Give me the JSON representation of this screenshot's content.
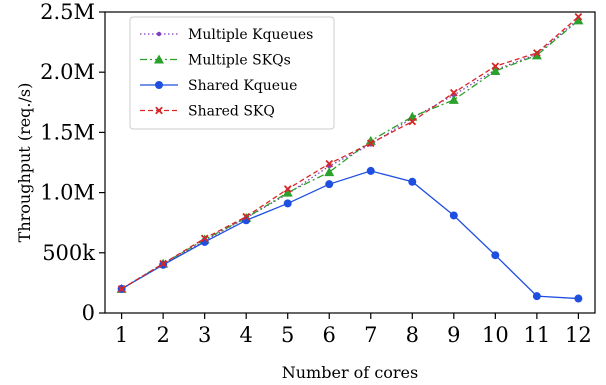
{
  "chart_data": {
    "type": "line",
    "title": "",
    "xlabel": "Number of cores",
    "ylabel": "Throughput (req./s)",
    "x": [
      1,
      2,
      3,
      4,
      5,
      6,
      7,
      8,
      9,
      10,
      11,
      12
    ],
    "x_tick_labels": [
      "1",
      "2",
      "3",
      "4",
      "5",
      "6",
      "7",
      "8",
      "9",
      "10",
      "11",
      "12"
    ],
    "xlim": [
      0.6,
      12.4
    ],
    "ylim": [
      0,
      2500000
    ],
    "y_ticks": [
      0,
      500000,
      1000000,
      1500000,
      2000000,
      2500000
    ],
    "y_tick_labels": [
      "0",
      "500k",
      "1.0M",
      "1.5M",
      "2.0M",
      "2.5M"
    ],
    "grid": false,
    "legend_position": "upper-left",
    "series": [
      {
        "name": "Multiple Kqueues",
        "color": "#7f3fbf",
        "line_style": "dotted",
        "marker": "dot",
        "values": [
          200000,
          410000,
          600000,
          790000,
          990000,
          1220000,
          1400000,
          1620000,
          1810000,
          2020000,
          2150000,
          2440000
        ]
      },
      {
        "name": "Multiple SKQs",
        "color": "#2ca02c",
        "line_style": "dash-dot",
        "marker": "triangle",
        "values": [
          200000,
          410000,
          610000,
          790000,
          1000000,
          1170000,
          1430000,
          1630000,
          1770000,
          2010000,
          2140000,
          2430000
        ]
      },
      {
        "name": "Shared Kqueue",
        "color": "#1f4fe0",
        "line_style": "solid",
        "marker": "circle",
        "values": [
          200000,
          400000,
          590000,
          770000,
          910000,
          1070000,
          1180000,
          1090000,
          810000,
          480000,
          140000,
          120000
        ]
      },
      {
        "name": "Shared SKQ",
        "color": "#d62728",
        "line_style": "dashed",
        "marker": "x",
        "values": [
          200000,
          410000,
          620000,
          800000,
          1030000,
          1240000,
          1410000,
          1590000,
          1830000,
          2050000,
          2160000,
          2460000
        ]
      }
    ]
  }
}
